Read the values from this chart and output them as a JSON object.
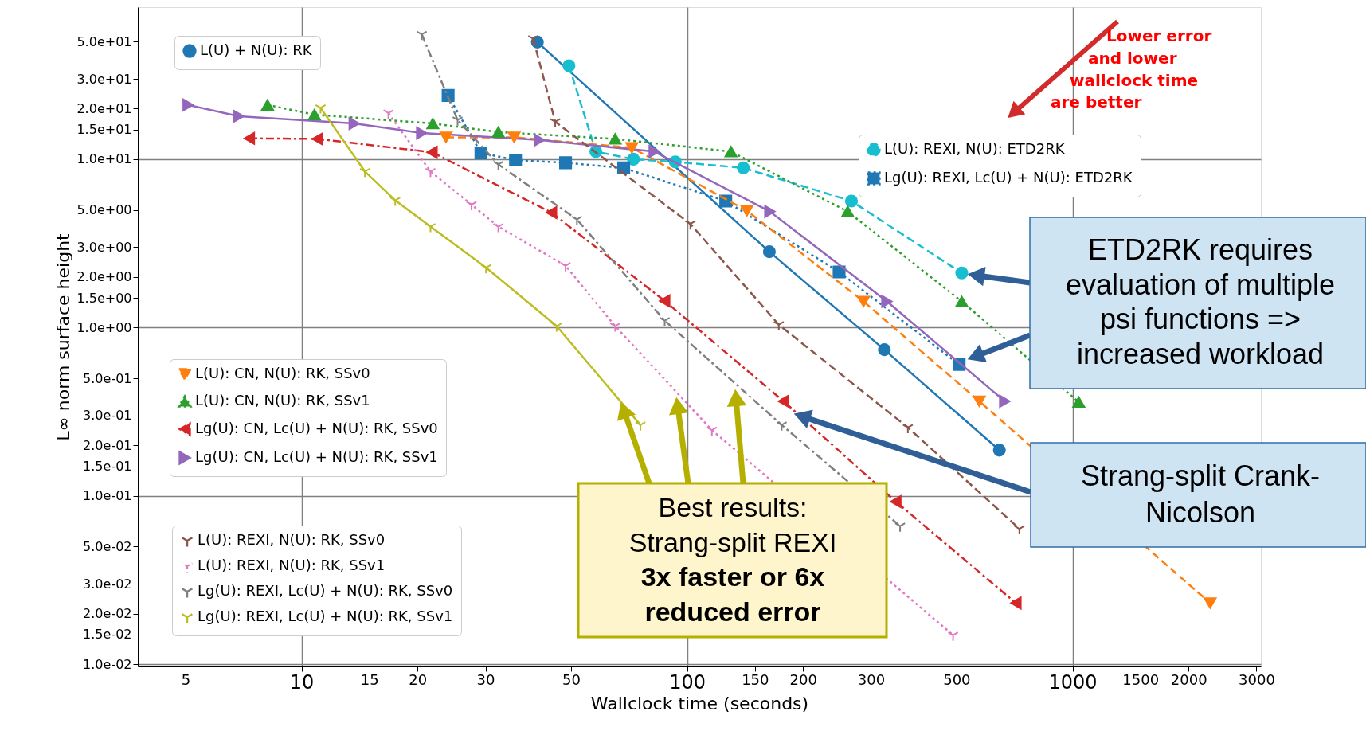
{
  "chart_data": {
    "type": "line",
    "xlabel": "Wallclock time (seconds)",
    "ylabel": "L∞ norm surface height",
    "log": "xy",
    "grid": true,
    "legend": "top left",
    "xlim": [
      3.76,
      3080
    ],
    "xticks": [
      5,
      10,
      15,
      20,
      30,
      50,
      100,
      150,
      200,
      300,
      500,
      1000,
      1500,
      2000,
      3000
    ],
    "ylim": [
      0.0097,
      80
    ],
    "yticks": [
      {
        "value": 0.01,
        "label": "1.0e-02"
      },
      {
        "value": 0.015,
        "label": "1.5e-02"
      },
      {
        "value": 0.02,
        "label": "2.0e-02"
      },
      {
        "value": 0.03,
        "label": "3.0e-02"
      },
      {
        "value": 0.05,
        "label": "5.0e-02"
      },
      {
        "value": 0.1,
        "label": "1.0e-01"
      },
      {
        "value": 0.15,
        "label": "1.5e-01"
      },
      {
        "value": 0.2,
        "label": "2.0e-01"
      },
      {
        "value": 0.3,
        "label": "3.0e-01"
      },
      {
        "value": 0.5,
        "label": "5.0e-01"
      },
      {
        "value": 1,
        "label": "1.0e+00"
      },
      {
        "value": 1.5,
        "label": "1.5e+00"
      },
      {
        "value": 2,
        "label": "2.0e+00"
      },
      {
        "value": 3,
        "label": "3.0e+00"
      },
      {
        "value": 5,
        "label": "5.0e+00"
      },
      {
        "value": 10,
        "label": "1.0e+01"
      },
      {
        "value": 15,
        "label": "1.5e+01"
      },
      {
        "value": 20,
        "label": "2.0e+01"
      },
      {
        "value": 30,
        "label": "3.0e+01"
      },
      {
        "value": 50,
        "label": "5.0e+01"
      }
    ],
    "series": [
      {
        "name": "L(U) + N(U): RK",
        "color": "#1f77b4",
        "marker": "circle",
        "line_style": "solid",
        "x": [
          40.9,
          163.5,
          325,
          646
        ],
        "values": [
          49.6,
          2.82,
          0.739,
          0.187
        ]
      },
      {
        "name": "L(U): REXI, N(U): ETD2RK",
        "color": "#17becf",
        "marker": "circle",
        "line_style": "dashed",
        "x": [
          49.4,
          58.0,
          72.6,
          93.2,
          140,
          267,
          516
        ],
        "values": [
          35.9,
          11.1,
          10.0,
          9.64,
          8.88,
          5.64,
          2.11
        ]
      },
      {
        "name": "Lg(U): REXI, Lc(U) + N(U): ETD2RK",
        "color": "#1f77b4",
        "marker": "square",
        "line_style": "dotted",
        "x": [
          24.0,
          29.2,
          35.9,
          48.4,
          68.5,
          126,
          248,
          508
        ],
        "values": [
          23.9,
          10.9,
          9.88,
          9.53,
          8.87,
          5.64,
          2.14,
          0.603
        ]
      },
      {
        "name": "L(U): CN, N(U): RK, SSv0",
        "color": "#ff7f0e",
        "marker": "triangle-down",
        "line_style": "dashed",
        "x": [
          23.7,
          35.6,
          71.9,
          143,
          287,
          573,
          2275
        ],
        "values": [
          13.5,
          13.5,
          11.7,
          4.94,
          1.43,
          0.365,
          0.0231
        ]
      },
      {
        "name": "L(U): CN, N(U): RK, SSv1",
        "color": "#2ca02c",
        "marker": "triangle-up",
        "line_style": "dotted",
        "x": [
          8.16,
          10.8,
          21.9,
          32.4,
          65.1,
          130,
          261,
          516,
          1038
        ],
        "values": [
          21.0,
          18.4,
          16.3,
          14.5,
          13.2,
          11.1,
          4.89,
          1.43,
          0.361
        ]
      },
      {
        "name": "Lg(U): CN, Lc(U) + N(U): RK, SSv0",
        "color": "#d62728",
        "marker": "triangle-left",
        "line_style": "dashdot",
        "x": [
          7.32,
          11.0,
          21.8,
          44.5,
          87.5,
          178,
          348,
          713
        ],
        "values": [
          13.3,
          13.2,
          11.0,
          4.82,
          1.44,
          0.365,
          0.0925,
          0.0231
        ]
      },
      {
        "name": "Lg(U): CN, Lc(U) + N(U): RK, SSv1",
        "color": "#9467bd",
        "marker": "triangle-right",
        "line_style": "solid",
        "x": [
          5.08,
          6.87,
          13.7,
          20.5,
          41.4,
          82.2,
          164,
          330,
          667
        ],
        "values": [
          21.0,
          18.0,
          16.3,
          14.3,
          13.0,
          11.1,
          4.89,
          1.43,
          0.365
        ]
      },
      {
        "name": "L(U): REXI, N(U): RK, SSv0",
        "color": "#8c564b",
        "marker": "cross",
        "line_style": "dashed",
        "x": [
          39.9,
          45.5,
          102,
          173,
          374,
          728
        ],
        "values": [
          52.0,
          16.7,
          4.13,
          1.04,
          0.255,
          0.0638
        ]
      },
      {
        "name": "L(U): REXI, N(U): RK, SSv1",
        "color": "#e377c2",
        "marker": "cross",
        "line_style": "dotted",
        "x": [
          16.8,
          21.6,
          27.6,
          32.4,
          48.4,
          65.1,
          116,
          490
        ],
        "values": [
          18.8,
          8.46,
          5.37,
          3.98,
          2.33,
          1.02,
          0.246,
          0.0149
        ]
      },
      {
        "name": "Lg(U): REXI, Lc(U) + N(U): RK, SSv0",
        "color": "#7f7f7f",
        "marker": "cross",
        "line_style": "dashdot",
        "x": [
          20.5,
          25.4,
          32.4,
          51.8,
          87.5,
          176,
          357
        ],
        "values": [
          55.2,
          17.1,
          9.31,
          4.39,
          1.1,
          0.264,
          0.0662
        ]
      },
      {
        "name": "Lg(U): REXI, Lc(U) + N(U): RK, SSv1",
        "color": "#bcbd22",
        "marker": "cross",
        "line_style": "solid",
        "x": [
          11.2,
          14.6,
          17.5,
          21.6,
          30.1,
          45.9,
          75.7
        ],
        "values": [
          20.2,
          8.46,
          5.7,
          3.98,
          2.27,
          1.02,
          0.264
        ]
      }
    ],
    "annotations": [
      "Lower error\nand lower\nwallclock time\nare better",
      "ETD2RK requires\nevaluation of multiple\npsi functions =>\nincreased workload",
      "Strang-split Crank-\nNicolson",
      "Best results:\nStrang-split REXI\n3x faster or 6x\nreduced error"
    ]
  }
}
